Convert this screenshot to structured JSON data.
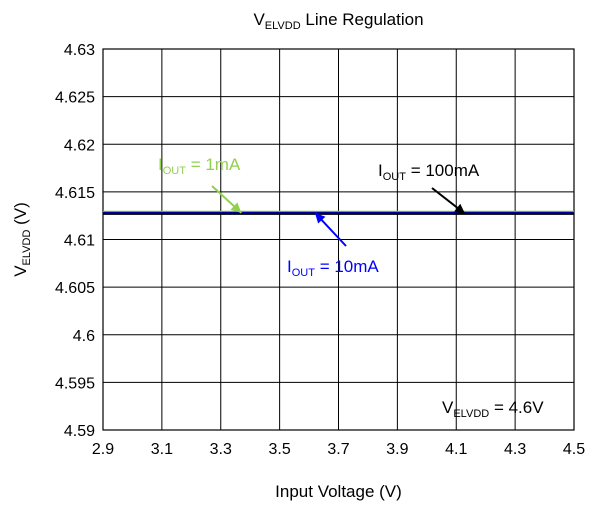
{
  "chart_data": {
    "type": "line",
    "title": {
      "main": "V",
      "sub": "ELVDD",
      "rest": " Line Regulation"
    },
    "xlabel": "Input Voltage (V)",
    "ylabel": {
      "main": "V",
      "sub": "ELVDD",
      "rest": " (V)"
    },
    "xlim": [
      2.9,
      4.5
    ],
    "ylim": [
      4.59,
      4.63
    ],
    "xticks": [
      "2.9",
      "3.1",
      "3.3",
      "3.5",
      "3.7",
      "3.9",
      "4.1",
      "4.3",
      "4.5"
    ],
    "yticks": [
      "4.59",
      "4.595",
      "4.6",
      "4.605",
      "4.61",
      "4.615",
      "4.62",
      "4.625",
      "4.63"
    ],
    "grid": true,
    "series": [
      {
        "name": "IOUT = 1mA",
        "color": "#92d050",
        "x": [
          2.9,
          3.3,
          3.7,
          4.1,
          4.5
        ],
        "y": [
          4.6129,
          4.6129,
          4.6129,
          4.6129,
          4.6129
        ]
      },
      {
        "name": "IOUT = 10mA",
        "color": "#0000ff",
        "x": [
          2.9,
          3.3,
          3.7,
          4.1,
          4.5
        ],
        "y": [
          4.6128,
          4.6128,
          4.6128,
          4.6128,
          4.6128
        ]
      },
      {
        "name": "IOUT = 100mA",
        "color": "#000000",
        "x": [
          2.9,
          3.3,
          3.7,
          4.1,
          4.5
        ],
        "y": [
          4.6127,
          4.6127,
          4.6127,
          4.6127,
          4.6127
        ]
      }
    ],
    "annotations": [
      {
        "main": "I",
        "sub": "OUT",
        "rest": " = 1mA",
        "color": "#92d050",
        "arrow_to": [
          3.37,
          4.6128
        ]
      },
      {
        "main": "I",
        "sub": "OUT",
        "rest": " = 10mA",
        "color": "#0000ff",
        "arrow_to": [
          3.62,
          4.6128
        ]
      },
      {
        "main": "I",
        "sub": "OUT",
        "rest": " = 100mA",
        "color": "#000000",
        "arrow_to": [
          4.13,
          4.6127
        ]
      },
      {
        "main": "V",
        "sub": "ELVDD",
        "rest": " = 4.6V",
        "color": "#000000"
      }
    ]
  }
}
